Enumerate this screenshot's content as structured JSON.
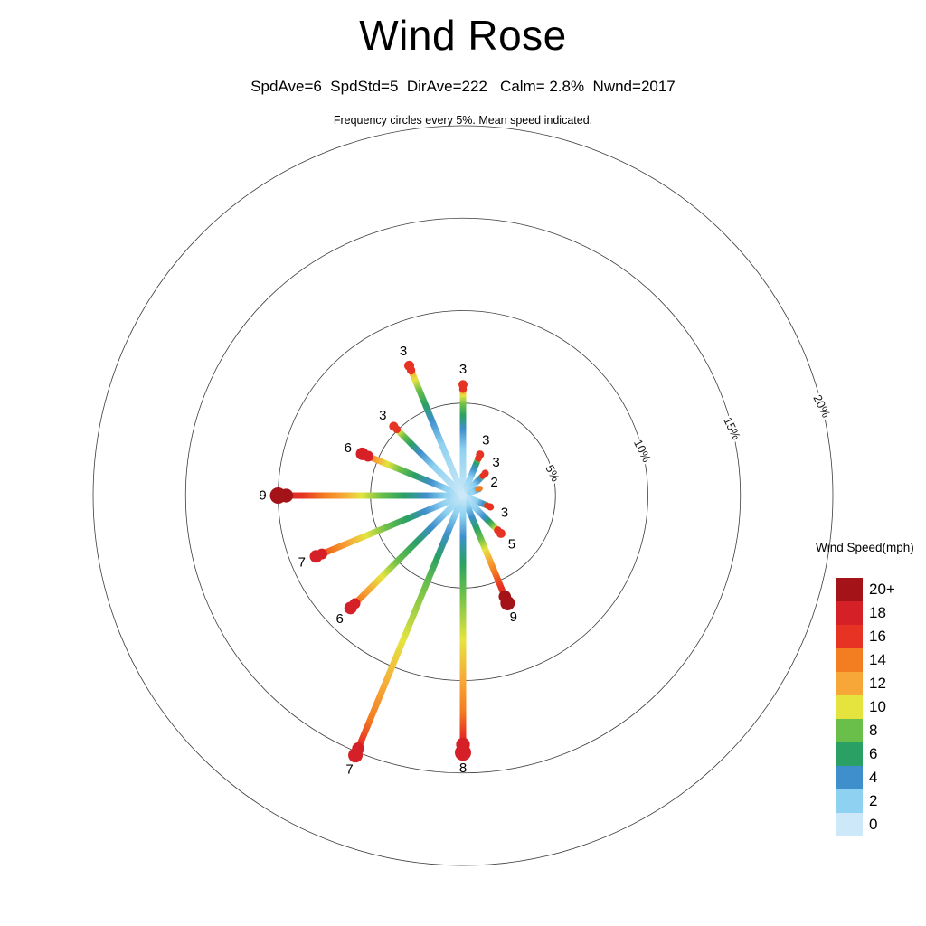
{
  "header": {
    "title": "Wind Rose",
    "stats_line": "SpdAve=6  SpdStd=5  DirAve=222   Calm= 2.8%  Nwnd=2017",
    "caption": "Frequency circles every 5%. Mean speed indicated."
  },
  "legend": {
    "title": "Wind Speed(mph)",
    "entries": [
      {
        "label": "20+",
        "color": "#a31318"
      },
      {
        "label": "18",
        "color": "#d62027"
      },
      {
        "label": "16",
        "color": "#e63323"
      },
      {
        "label": "14",
        "color": "#f37d21"
      },
      {
        "label": "12",
        "color": "#f7a738"
      },
      {
        "label": "10",
        "color": "#e5e43f"
      },
      {
        "label": "8",
        "color": "#6abf4a"
      },
      {
        "label": "6",
        "color": "#2aa064"
      },
      {
        "label": "4",
        "color": "#3f8fcc"
      },
      {
        "label": "2",
        "color": "#8ed1f0"
      },
      {
        "label": "0",
        "color": "#cde9f9"
      }
    ]
  },
  "chart_data": {
    "type": "windrose",
    "title": "Wind Rose",
    "stats": {
      "SpdAve": 6,
      "SpdStd": 5,
      "DirAve": 222,
      "Calm_pct": 2.8,
      "Nwnd": 2017
    },
    "frequency_ring_step_pct": 5,
    "rings": [
      {
        "radius_pct": 5,
        "label": "5%"
      },
      {
        "radius_pct": 10,
        "label": "10%"
      },
      {
        "radius_pct": 15,
        "label": "15%"
      },
      {
        "radius_pct": 20,
        "label": "20%"
      }
    ],
    "ring_label_bearing_deg": 76,
    "ring_label_rotation_deg": 64,
    "speed_bins_mph": [
      "0",
      "2",
      "4",
      "6",
      "8",
      "10",
      "12",
      "14",
      "16",
      "18",
      "20+"
    ],
    "palette": {
      "0": "#cde9f9",
      "2": "#8ed1f0",
      "4": "#3f8fcc",
      "6": "#2aa064",
      "8": "#6abf4a",
      "10": "#e5e43f",
      "12": "#f7a738",
      "14": "#f37d21",
      "16": "#e63323",
      "18": "#d62027",
      "20+": "#a31318"
    },
    "legend_position": "right",
    "spokes": [
      {
        "dir": "N",
        "bearing_deg": 0,
        "frequency_pct": 6.0,
        "mean_speed": 3,
        "stops": [
          [
            0,
            "0"
          ],
          [
            0.42,
            "2"
          ],
          [
            0.6,
            "4"
          ],
          [
            0.72,
            "6"
          ],
          [
            0.82,
            "8"
          ],
          [
            0.9,
            "10"
          ],
          [
            0.96,
            "14"
          ],
          [
            1,
            "16"
          ]
        ],
        "tip": {
          "color_key": "16",
          "radius": 5
        }
      },
      {
        "dir": "NNE",
        "bearing_deg": 22.5,
        "frequency_pct": 2.4,
        "mean_speed": 3,
        "stops": [
          [
            0,
            "0"
          ],
          [
            0.45,
            "2"
          ],
          [
            0.65,
            "4"
          ],
          [
            0.8,
            "6"
          ],
          [
            0.92,
            "10"
          ],
          [
            1,
            "14"
          ]
        ],
        "tip": {
          "color_key": "16",
          "radius": 4.5
        }
      },
      {
        "dir": "NE",
        "bearing_deg": 45,
        "frequency_pct": 1.7,
        "mean_speed": 3,
        "stops": [
          [
            0,
            "0"
          ],
          [
            0.5,
            "2"
          ],
          [
            0.72,
            "4"
          ],
          [
            0.88,
            "8"
          ],
          [
            1,
            "12"
          ]
        ],
        "tip": {
          "color_key": "16",
          "radius": 4
        }
      },
      {
        "dir": "ENE",
        "bearing_deg": 67.5,
        "frequency_pct": 1.0,
        "mean_speed": 2,
        "stops": [
          [
            0,
            "0"
          ],
          [
            0.6,
            "2"
          ],
          [
            1,
            "4"
          ]
        ],
        "tip": {
          "color_key": "14",
          "radius": 3
        }
      },
      {
        "dir": "E",
        "bearing_deg": 90,
        "frequency_pct": 0.4,
        "mean_speed": null,
        "stops": [
          [
            0,
            "0"
          ],
          [
            1,
            "2"
          ]
        ],
        "tip": null
      },
      {
        "dir": "ESE",
        "bearing_deg": 112.5,
        "frequency_pct": 1.6,
        "mean_speed": 3,
        "stops": [
          [
            0,
            "0"
          ],
          [
            0.5,
            "2"
          ],
          [
            0.72,
            "4"
          ],
          [
            0.88,
            "8"
          ],
          [
            1,
            "12"
          ]
        ],
        "tip": {
          "color_key": "16",
          "radius": 4
        }
      },
      {
        "dir": "SE",
        "bearing_deg": 135,
        "frequency_pct": 2.9,
        "mean_speed": 5,
        "stops": [
          [
            0,
            "0"
          ],
          [
            0.35,
            "2"
          ],
          [
            0.55,
            "4"
          ],
          [
            0.68,
            "6"
          ],
          [
            0.78,
            "8"
          ],
          [
            0.87,
            "10"
          ],
          [
            0.94,
            "12"
          ],
          [
            1,
            "14"
          ]
        ],
        "tip": {
          "color_key": "16",
          "radius": 5
        }
      },
      {
        "dir": "SSE",
        "bearing_deg": 157.5,
        "frequency_pct": 6.3,
        "mean_speed": 9,
        "stops": [
          [
            0,
            "0"
          ],
          [
            0.1,
            "2"
          ],
          [
            0.2,
            "4"
          ],
          [
            0.3,
            "6"
          ],
          [
            0.4,
            "8"
          ],
          [
            0.5,
            "10"
          ],
          [
            0.6,
            "12"
          ],
          [
            0.7,
            "14"
          ],
          [
            0.84,
            "16"
          ],
          [
            1,
            "18"
          ]
        ],
        "tip": {
          "color_key": "20+",
          "radius": 8
        }
      },
      {
        "dir": "S",
        "bearing_deg": 180,
        "frequency_pct": 13.9,
        "mean_speed": 8,
        "stops": [
          [
            0,
            "0"
          ],
          [
            0.08,
            "2"
          ],
          [
            0.16,
            "4"
          ],
          [
            0.26,
            "6"
          ],
          [
            0.38,
            "8"
          ],
          [
            0.56,
            "10"
          ],
          [
            0.72,
            "12"
          ],
          [
            0.84,
            "14"
          ],
          [
            0.93,
            "16"
          ],
          [
            1,
            "18"
          ]
        ],
        "tip": {
          "color_key": "18",
          "radius": 9
        }
      },
      {
        "dir": "SSW",
        "bearing_deg": 202.5,
        "frequency_pct": 15.2,
        "mean_speed": 7,
        "stops": [
          [
            0,
            "0"
          ],
          [
            0.07,
            "2"
          ],
          [
            0.15,
            "4"
          ],
          [
            0.24,
            "6"
          ],
          [
            0.34,
            "8"
          ],
          [
            0.56,
            "10"
          ],
          [
            0.74,
            "12"
          ],
          [
            0.86,
            "14"
          ],
          [
            0.95,
            "16"
          ],
          [
            1,
            "18"
          ]
        ],
        "tip": {
          "color_key": "18",
          "radius": 8
        }
      },
      {
        "dir": "SW",
        "bearing_deg": 225,
        "frequency_pct": 8.6,
        "mean_speed": 6,
        "stops": [
          [
            0,
            "0"
          ],
          [
            0.15,
            "2"
          ],
          [
            0.28,
            "4"
          ],
          [
            0.42,
            "6"
          ],
          [
            0.58,
            "8"
          ],
          [
            0.72,
            "10"
          ],
          [
            0.84,
            "12"
          ],
          [
            0.93,
            "14"
          ],
          [
            1,
            "16"
          ]
        ],
        "tip": {
          "color_key": "18",
          "radius": 7
        }
      },
      {
        "dir": "WSW",
        "bearing_deg": 247.5,
        "frequency_pct": 8.6,
        "mean_speed": 7,
        "stops": [
          [
            0,
            "0"
          ],
          [
            0.14,
            "2"
          ],
          [
            0.26,
            "4"
          ],
          [
            0.38,
            "6"
          ],
          [
            0.52,
            "8"
          ],
          [
            0.66,
            "10"
          ],
          [
            0.78,
            "12"
          ],
          [
            0.88,
            "14"
          ],
          [
            1,
            "16"
          ]
        ],
        "tip": {
          "color_key": "18",
          "radius": 7
        }
      },
      {
        "dir": "W",
        "bearing_deg": 270,
        "frequency_pct": 10.0,
        "mean_speed": 9,
        "stops": [
          [
            0,
            "0"
          ],
          [
            0.1,
            "2"
          ],
          [
            0.2,
            "4"
          ],
          [
            0.32,
            "6"
          ],
          [
            0.44,
            "8"
          ],
          [
            0.55,
            "10"
          ],
          [
            0.65,
            "12"
          ],
          [
            0.75,
            "14"
          ],
          [
            0.87,
            "16"
          ],
          [
            1,
            "18"
          ]
        ],
        "tip": {
          "color_key": "20+",
          "radius": 9
        }
      },
      {
        "dir": "WNW",
        "bearing_deg": 292.5,
        "frequency_pct": 5.9,
        "mean_speed": 6,
        "stops": [
          [
            0,
            "0"
          ],
          [
            0.18,
            "2"
          ],
          [
            0.32,
            "4"
          ],
          [
            0.48,
            "6"
          ],
          [
            0.62,
            "8"
          ],
          [
            0.75,
            "10"
          ],
          [
            0.85,
            "12"
          ],
          [
            0.93,
            "14"
          ],
          [
            1,
            "16"
          ]
        ],
        "tip": {
          "color_key": "18",
          "radius": 7
        }
      },
      {
        "dir": "NW",
        "bearing_deg": 315,
        "frequency_pct": 5.3,
        "mean_speed": 3,
        "stops": [
          [
            0,
            "0"
          ],
          [
            0.42,
            "2"
          ],
          [
            0.62,
            "4"
          ],
          [
            0.75,
            "6"
          ],
          [
            0.85,
            "8"
          ],
          [
            0.93,
            "10"
          ],
          [
            1,
            "14"
          ]
        ],
        "tip": {
          "color_key": "16",
          "radius": 5
        }
      },
      {
        "dir": "NNW",
        "bearing_deg": 337.5,
        "frequency_pct": 7.6,
        "mean_speed": 3,
        "stops": [
          [
            0,
            "0"
          ],
          [
            0.4,
            "2"
          ],
          [
            0.58,
            "4"
          ],
          [
            0.7,
            "6"
          ],
          [
            0.81,
            "8"
          ],
          [
            0.89,
            "10"
          ],
          [
            0.95,
            "12"
          ],
          [
            1,
            "14"
          ]
        ],
        "tip": {
          "color_key": "16",
          "radius": 5.5
        }
      }
    ]
  }
}
